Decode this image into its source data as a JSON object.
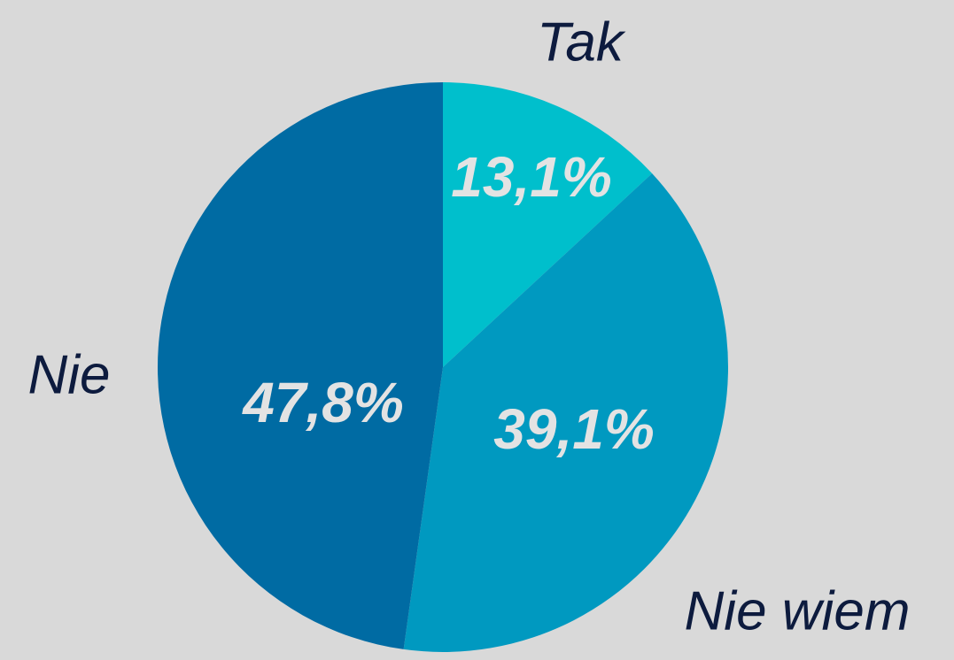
{
  "chart_data": {
    "type": "pie",
    "categories": [
      "Tak",
      "Nie wiem",
      "Nie"
    ],
    "values": [
      13.1,
      39.1,
      47.8
    ],
    "value_labels": [
      "13,1%",
      "39,1%",
      "47,8%"
    ],
    "colors": [
      "#00bfcc",
      "#0099c0",
      "#006ba3"
    ]
  }
}
